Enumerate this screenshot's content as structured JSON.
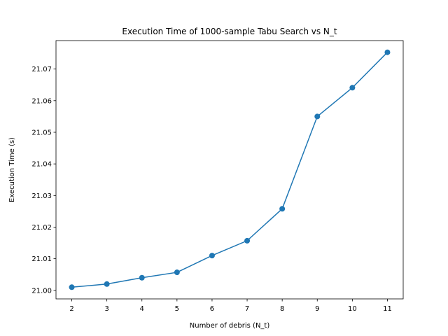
{
  "chart_data": {
    "type": "line",
    "title": "Execution Time of 1000-sample Tabu Search vs N_t",
    "xlabel": "Number of debris (N_t)",
    "ylabel": "Execution Time (s)",
    "x": [
      2,
      3,
      4,
      5,
      6,
      7,
      8,
      9,
      10,
      11
    ],
    "series": [
      {
        "values": [
          21.001,
          21.002,
          21.004,
          21.0057,
          21.011,
          21.0157,
          21.0258,
          21.055,
          21.0641,
          21.0753
        ],
        "color": "#1f77b4",
        "marker": "circle"
      }
    ],
    "xlim": [
      1.55,
      11.45
    ],
    "ylim": [
      20.9973,
      21.079
    ],
    "xticks": [
      "2",
      "3",
      "4",
      "5",
      "6",
      "7",
      "8",
      "9",
      "10",
      "11"
    ],
    "yticks": [
      "21.00",
      "21.01",
      "21.02",
      "21.03",
      "21.04",
      "21.05",
      "21.06",
      "21.07"
    ],
    "grid": false,
    "legend": "none"
  }
}
